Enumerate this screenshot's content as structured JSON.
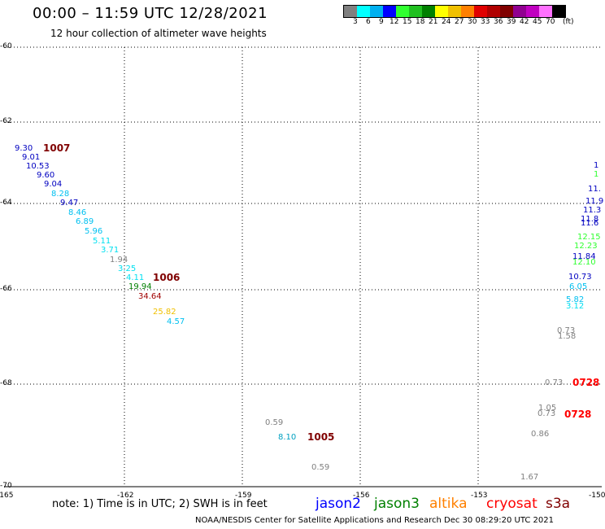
{
  "header": {
    "title": "00:00 – 11:59 UTC 12/28/2021",
    "subtitle": "12 hour collection of altimeter wave heights"
  },
  "legend": {
    "colors": [
      "#808080",
      "#00ffff",
      "#00b0f0",
      "#0000ff",
      "#30ff30",
      "#20c020",
      "#008000",
      "#ffff00",
      "#f0c000",
      "#ff8000",
      "#e00000",
      "#b00000",
      "#800000",
      "#900090",
      "#c000c0",
      "#ff70ff",
      "#000000"
    ],
    "labels": [
      "3",
      "6",
      "9",
      "12",
      "15",
      "18",
      "21",
      "24",
      "27",
      "30",
      "33",
      "36",
      "39",
      "42",
      "45",
      "70"
    ],
    "unit": "(ft)"
  },
  "axes": {
    "y_labels": [
      "-60",
      "-62",
      "-64",
      "-66",
      "-68",
      "-70"
    ],
    "x_labels": [
      "-165",
      "-162",
      "-159",
      "-156",
      "-153",
      "-150"
    ]
  },
  "observations": [
    {
      "text": "9.30",
      "color": "#0000c0"
    },
    {
      "text": "9.01",
      "color": "#0000c0"
    },
    {
      "text": "10.53",
      "color": "#0000c0"
    },
    {
      "text": "9.60",
      "color": "#0000c0"
    },
    {
      "text": "9.04",
      "color": "#0000c0"
    },
    {
      "text": "8.28",
      "color": "#00c0f0"
    },
    {
      "text": "9.47",
      "color": "#0000c0"
    },
    {
      "text": "8.46",
      "color": "#00c0f0"
    },
    {
      "text": "6.89",
      "color": "#00c0f0"
    },
    {
      "text": "5.96",
      "color": "#00c0f0"
    },
    {
      "text": "5.11",
      "color": "#00e0f0"
    },
    {
      "text": "3.71",
      "color": "#00e0f0"
    },
    {
      "text": "1.94",
      "color": "#808080"
    },
    {
      "text": "3.25",
      "color": "#00e0f0"
    },
    {
      "text": "4.11",
      "color": "#00e0f0"
    },
    {
      "text": "19.94",
      "color": "#008000"
    },
    {
      "text": "34.64",
      "color": "#a00000"
    },
    {
      "text": "25.82",
      "color": "#f0c000"
    },
    {
      "text": "4.57",
      "color": "#00c0f0"
    },
    {
      "text": "0.59",
      "color": "#808080"
    },
    {
      "text": "8.10",
      "color": "#00a0c0"
    },
    {
      "text": "0.59",
      "color": "#808080"
    },
    {
      "text": "1",
      "color": "#0000c0"
    },
    {
      "text": "1",
      "color": "#30ff30"
    },
    {
      "text": "11.",
      "color": "#0000c0"
    },
    {
      "text": "11.9",
      "color": "#0000c0"
    },
    {
      "text": "11.3",
      "color": "#0000c0"
    },
    {
      "text": "11.8",
      "color": "#0000c0"
    },
    {
      "text": "11.6",
      "color": "#0000c0"
    },
    {
      "text": "12.15",
      "color": "#30ff30"
    },
    {
      "text": "12.23",
      "color": "#30ff30"
    },
    {
      "text": "11.84",
      "color": "#0000c0"
    },
    {
      "text": "12.10",
      "color": "#30ff30"
    },
    {
      "text": "10.73",
      "color": "#0000c0"
    },
    {
      "text": "6.05",
      "color": "#00c0f0"
    },
    {
      "text": "5.82",
      "color": "#00c0f0"
    },
    {
      "text": "3.12",
      "color": "#00e0f0"
    },
    {
      "text": "0.73",
      "color": "#808080"
    },
    {
      "text": "1.58",
      "color": "#808080"
    },
    {
      "text": "0.73",
      "color": "#808080"
    },
    {
      "text": "1.05",
      "color": "#808080"
    },
    {
      "text": "0.73",
      "color": "#808080"
    },
    {
      "text": "0.86",
      "color": "#808080"
    },
    {
      "text": "1.67",
      "color": "#808080"
    }
  ],
  "cyclones": [
    {
      "text": "1007",
      "color": "#800000"
    },
    {
      "text": "1006",
      "color": "#800000"
    },
    {
      "text": "1005",
      "color": "#800000"
    },
    {
      "text": "0728",
      "color": "#ff0000"
    },
    {
      "text": "0728",
      "color": "#ff0000"
    }
  ],
  "footer": {
    "note": "note: 1) Time is in UTC; 2) SWH is in feet",
    "satellites": [
      {
        "name": "jason2",
        "color": "#0000ff"
      },
      {
        "name": "jason3",
        "color": "#008000"
      },
      {
        "name": "altika",
        "color": "#ff8000"
      },
      {
        "name": "cryosat",
        "color": "#ff0000"
      },
      {
        "name": "s3a",
        "color": "#800000"
      }
    ],
    "credit": "NOAA/NESDIS Center for Satellite Applications and Research     Dec 30 08:29:20 UTC 2021"
  }
}
